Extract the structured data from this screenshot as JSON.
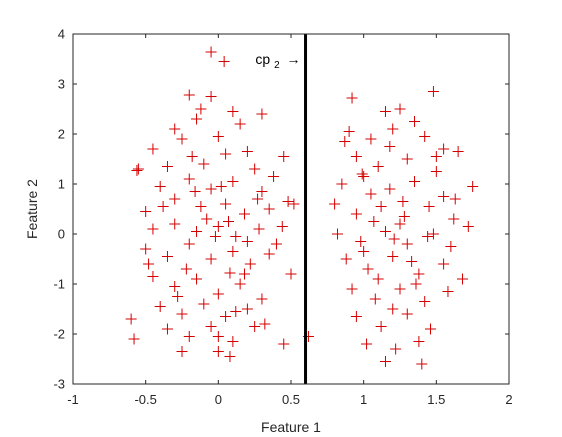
{
  "chart_data": {
    "type": "scatter",
    "title": "",
    "xlabel": "Feature 1",
    "ylabel": "Feature 2",
    "xlim": [
      -1,
      2
    ],
    "ylim": [
      -3,
      4
    ],
    "xticks": [
      "-1",
      "-0.5",
      "0",
      "0.5",
      "1",
      "1.5",
      "2"
    ],
    "yticks": [
      "-3",
      "-2",
      "-1",
      "0",
      "1",
      "2",
      "3",
      "4"
    ],
    "grid": false,
    "legend": "none",
    "marker": "plus",
    "marker_color": "#d40000",
    "vline": {
      "x": 0.6,
      "color": "#000000"
    },
    "annotation": {
      "text": "cp",
      "subscript": "2",
      "arrow": "→",
      "x": 0.6,
      "y": 3.5
    },
    "series": [
      {
        "points": [
          [
            -0.05,
            3.64
          ],
          [
            0.04,
            3.45
          ],
          [
            -0.2,
            2.78
          ],
          [
            -0.05,
            2.75
          ],
          [
            0.1,
            2.45
          ],
          [
            0.3,
            2.4
          ],
          [
            -0.3,
            2.1
          ],
          [
            -0.15,
            2.3
          ],
          [
            0.15,
            2.2
          ],
          [
            -0.45,
            1.7
          ],
          [
            -0.25,
            1.9
          ],
          [
            0.0,
            1.95
          ],
          [
            0.2,
            1.65
          ],
          [
            0.45,
            1.55
          ],
          [
            -0.55,
            1.3
          ],
          [
            -0.56,
            1.27
          ],
          [
            -0.35,
            1.35
          ],
          [
            -0.1,
            1.4
          ],
          [
            0.05,
            1.6
          ],
          [
            0.25,
            1.3
          ],
          [
            -0.4,
            0.95
          ],
          [
            -0.2,
            1.1
          ],
          [
            -0.05,
            0.9
          ],
          [
            0.1,
            1.05
          ],
          [
            0.3,
            0.85
          ],
          [
            0.48,
            0.65
          ],
          [
            0.52,
            0.6
          ],
          [
            -0.5,
            0.45
          ],
          [
            -0.3,
            0.7
          ],
          [
            -0.12,
            0.55
          ],
          [
            0.05,
            0.6
          ],
          [
            0.18,
            0.4
          ],
          [
            0.35,
            0.5
          ],
          [
            -0.45,
            0.1
          ],
          [
            -0.3,
            0.2
          ],
          [
            -0.15,
            0.05
          ],
          [
            0.0,
            0.15
          ],
          [
            0.12,
            -0.05
          ],
          [
            0.28,
            0.1
          ],
          [
            0.4,
            -0.2
          ],
          [
            -0.5,
            -0.3
          ],
          [
            -0.35,
            -0.45
          ],
          [
            -0.2,
            -0.2
          ],
          [
            -0.05,
            -0.5
          ],
          [
            0.1,
            -0.35
          ],
          [
            0.22,
            -0.6
          ],
          [
            0.35,
            -0.4
          ],
          [
            0.5,
            -0.8
          ],
          [
            -0.45,
            -0.85
          ],
          [
            -0.3,
            -1.05
          ],
          [
            -0.15,
            -0.9
          ],
          [
            0.0,
            -1.2
          ],
          [
            0.15,
            -1.0
          ],
          [
            0.3,
            -1.3
          ],
          [
            -0.4,
            -1.45
          ],
          [
            -0.25,
            -1.6
          ],
          [
            -0.1,
            -1.4
          ],
          [
            0.05,
            -1.65
          ],
          [
            0.2,
            -1.5
          ],
          [
            -0.35,
            -1.9
          ],
          [
            -0.2,
            -2.05
          ],
          [
            -0.05,
            -1.85
          ],
          [
            0.1,
            -2.15
          ],
          [
            0.25,
            -1.85
          ],
          [
            0.45,
            -2.2
          ],
          [
            -0.58,
            -2.1
          ],
          [
            -0.25,
            -2.35
          ],
          [
            0.0,
            -2.35
          ],
          [
            0.08,
            -2.45
          ],
          [
            -0.6,
            -1.7
          ],
          [
            0.32,
            -1.8
          ],
          [
            -0.08,
            0.3
          ],
          [
            0.07,
            0.25
          ],
          [
            -0.22,
            -0.7
          ],
          [
            0.18,
            -0.8
          ],
          [
            -0.02,
            -0.05
          ],
          [
            0.27,
            0.7
          ],
          [
            -0.38,
            0.55
          ],
          [
            0.12,
            -1.55
          ],
          [
            -0.18,
            1.55
          ],
          [
            0.38,
            1.15
          ],
          [
            -0.28,
            -1.25
          ],
          [
            0.02,
            0.95
          ],
          [
            0.2,
            -0.15
          ],
          [
            -0.12,
            2.5
          ],
          [
            0.0,
            -2.05
          ],
          [
            -0.48,
            -0.6
          ],
          [
            0.44,
            0.15
          ],
          [
            -0.16,
            0.85
          ],
          [
            0.08,
            -0.78
          ],
          [
            0.62,
            -2.05
          ],
          [
            0.92,
            2.72
          ],
          [
            1.15,
            2.45
          ],
          [
            1.25,
            2.5
          ],
          [
            1.48,
            2.85
          ],
          [
            1.35,
            2.25
          ],
          [
            0.9,
            2.05
          ],
          [
            1.05,
            1.9
          ],
          [
            1.2,
            2.1
          ],
          [
            1.42,
            1.95
          ],
          [
            1.55,
            1.7
          ],
          [
            1.65,
            1.65
          ],
          [
            1.75,
            0.95
          ],
          [
            0.95,
            1.55
          ],
          [
            1.1,
            1.35
          ],
          [
            1.3,
            1.5
          ],
          [
            1.5,
            1.25
          ],
          [
            0.85,
            1.0
          ],
          [
            1.0,
            1.15
          ],
          [
            1.18,
            0.9
          ],
          [
            1.35,
            1.05
          ],
          [
            1.55,
            0.75
          ],
          [
            0.8,
            0.6
          ],
          [
            0.95,
            0.4
          ],
          [
            1.12,
            0.55
          ],
          [
            1.28,
            0.35
          ],
          [
            1.45,
            0.55
          ],
          [
            1.62,
            0.3
          ],
          [
            1.72,
            0.15
          ],
          [
            0.82,
            0.0
          ],
          [
            0.98,
            -0.15
          ],
          [
            1.15,
            0.05
          ],
          [
            1.3,
            -0.2
          ],
          [
            1.48,
            0.0
          ],
          [
            1.6,
            -0.25
          ],
          [
            0.88,
            -0.5
          ],
          [
            1.03,
            -0.7
          ],
          [
            1.2,
            -0.45
          ],
          [
            1.38,
            -0.8
          ],
          [
            1.55,
            -0.6
          ],
          [
            1.68,
            -0.9
          ],
          [
            0.92,
            -1.1
          ],
          [
            1.08,
            -1.3
          ],
          [
            1.25,
            -1.1
          ],
          [
            1.42,
            -1.35
          ],
          [
            1.58,
            -1.15
          ],
          [
            0.95,
            -1.65
          ],
          [
            1.12,
            -1.85
          ],
          [
            1.3,
            -1.6
          ],
          [
            1.46,
            -1.9
          ],
          [
            1.02,
            -2.2
          ],
          [
            1.22,
            -2.3
          ],
          [
            1.38,
            -2.15
          ],
          [
            1.15,
            -2.55
          ],
          [
            1.4,
            -2.6
          ],
          [
            1.2,
            -1.5
          ],
          [
            1.05,
            0.8
          ],
          [
            1.25,
            0.2
          ],
          [
            1.33,
            -0.55
          ],
          [
            1.1,
            -0.9
          ],
          [
            1.5,
            1.55
          ],
          [
            0.87,
            1.85
          ],
          [
            1.63,
            0.7
          ],
          [
            1.18,
            1.75
          ],
          [
            1.0,
            -0.35
          ],
          [
            1.44,
            -0.05
          ],
          [
            1.27,
            0.65
          ],
          [
            1.07,
            0.25
          ],
          [
            1.36,
            -1.0
          ],
          [
            0.99,
            1.2
          ],
          [
            1.21,
            -0.1
          ]
        ]
      }
    ]
  }
}
